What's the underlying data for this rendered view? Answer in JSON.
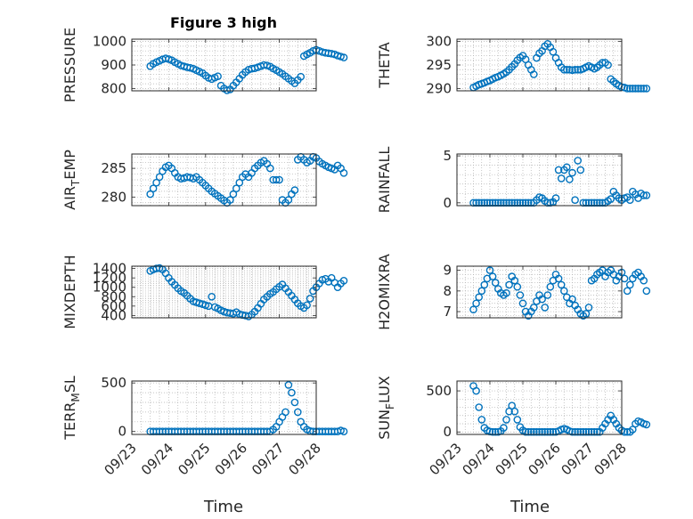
{
  "figure": {
    "title": "Figure 3 high",
    "xlabel": "Time"
  },
  "colors": {
    "marker": "#0072bd",
    "axis": "#262626",
    "grid": "#b0b0b0"
  },
  "chart_data": [
    {
      "type": "scatter",
      "ylabel": "PRESSURE",
      "xlim": [
        "09/23",
        "09/28"
      ],
      "ylim": [
        790,
        1010
      ],
      "yticks": [
        800,
        900,
        1000
      ],
      "xticks": [],
      "grid": true,
      "marker": "circle",
      "x_start": "09/23 12:00",
      "x_step_hours": 2,
      "values": [
        895,
        905,
        912,
        918,
        924,
        928,
        925,
        920,
        912,
        905,
        898,
        894,
        890,
        888,
        884,
        878,
        872,
        865,
        855,
        845,
        840,
        846,
        852,
        812,
        800,
        792,
        796,
        812,
        826,
        842,
        858,
        870,
        880,
        884,
        886,
        890,
        895,
        900,
        898,
        893,
        885,
        878,
        870,
        862,
        852,
        842,
        832,
        822,
        836,
        850,
        938,
        945,
        952,
        960,
        965,
        960,
        955,
        952,
        950,
        948,
        945,
        940,
        936,
        932
      ]
    },
    {
      "type": "scatter",
      "ylabel": "THETA",
      "xlim": [
        "09/23",
        "09/28"
      ],
      "ylim": [
        289.5,
        300.5
      ],
      "yticks": [
        290,
        295,
        300
      ],
      "xticks": [],
      "grid": true,
      "marker": "circle",
      "x_start": "09/23 12:00",
      "x_step_hours": 2,
      "values": [
        290.2,
        290.5,
        290.8,
        291,
        291.2,
        291.5,
        291.7,
        292,
        292.3,
        292.5,
        292.8,
        293.1,
        293.5,
        294,
        294.6,
        295.2,
        296,
        296.6,
        297,
        296.2,
        295,
        294,
        293,
        296.5,
        297.5,
        298,
        299,
        299.5,
        298.8,
        297.8,
        296.5,
        295.5,
        294.5,
        294,
        294,
        294,
        293.9,
        294,
        294,
        294,
        294.2,
        294.5,
        294.8,
        294.5,
        294.2,
        294.5,
        295,
        295.5,
        295.5,
        295,
        292,
        291.5,
        291,
        290.6,
        290.3,
        290.2,
        290,
        290,
        290,
        290,
        290,
        290,
        290,
        290
      ]
    },
    {
      "type": "scatter",
      "ylabel": "AIRTEMP",
      "xlim": [
        "09/23",
        "09/28"
      ],
      "ylim": [
        278.5,
        287.5
      ],
      "yticks": [
        280,
        285
      ],
      "xticks": [],
      "grid": true,
      "marker": "circle",
      "x_start": "09/23 12:00",
      "x_step_hours": 2,
      "values": [
        280.5,
        281.5,
        282.5,
        283.5,
        284.5,
        285.2,
        285.5,
        285,
        284.2,
        283.5,
        283.2,
        283.3,
        283.5,
        283.4,
        283.2,
        283.5,
        283,
        282.5,
        282,
        281.5,
        281,
        280.6,
        280.2,
        279.8,
        279.4,
        279,
        279.5,
        280.5,
        281.5,
        282.5,
        283.5,
        284,
        283.5,
        284.2,
        285,
        285.5,
        286,
        286.3,
        285.8,
        285,
        283,
        283,
        283,
        279.5,
        279,
        279.5,
        280.5,
        281.2,
        286.5,
        287,
        286.5,
        286,
        286.3,
        287,
        286.8,
        286.2,
        285.8,
        285.5,
        285.2,
        285,
        284.8,
        285.5,
        285,
        284.2
      ]
    },
    {
      "type": "scatter",
      "ylabel": "RAINFALL",
      "xlim": [
        "09/23",
        "09/28"
      ],
      "ylim": [
        -0.3,
        5.2
      ],
      "yticks": [
        0,
        5
      ],
      "xticks": [],
      "grid": true,
      "marker": "circle",
      "x_start": "09/23 12:00",
      "x_step_hours": 2,
      "values": [
        0,
        0,
        0,
        0,
        0,
        0,
        0,
        0,
        0,
        0,
        0,
        0,
        0,
        0,
        0,
        0,
        0,
        0,
        0,
        0,
        0,
        0,
        0,
        0.3,
        0.6,
        0.5,
        0.2,
        0,
        0,
        0.1,
        0.5,
        3.5,
        2.6,
        3.5,
        3.8,
        2.5,
        3.2,
        0.3,
        4.5,
        3.5,
        0,
        0,
        0,
        0,
        0,
        0,
        0,
        0,
        0,
        0.2,
        0.4,
        1.2,
        0.8,
        0.5,
        0.3,
        0.5,
        0.6,
        0.3,
        1.2,
        0.9,
        0.5,
        1,
        0.8,
        0.8
      ]
    },
    {
      "type": "scatter",
      "ylabel": "MIXDEPTH",
      "xlim": [
        "09/23",
        "09/28"
      ],
      "ylim": [
        350,
        1450
      ],
      "yticks": [
        400,
        600,
        800,
        1000,
        1200,
        1400
      ],
      "xticks": [],
      "grid": true,
      "marker": "circle",
      "x_start": "09/23 12:00",
      "x_step_hours": 2,
      "values": [
        1350,
        1380,
        1400,
        1410,
        1380,
        1300,
        1200,
        1120,
        1050,
        980,
        920,
        880,
        820,
        760,
        700,
        680,
        660,
        640,
        620,
        600,
        800,
        580,
        550,
        510,
        480,
        460,
        450,
        440,
        470,
        430,
        410,
        400,
        380,
        420,
        480,
        560,
        650,
        740,
        800,
        860,
        900,
        960,
        1010,
        1060,
        980,
        900,
        820,
        740,
        660,
        600,
        560,
        620,
        760,
        920,
        1000,
        1080,
        1160,
        1180,
        1120,
        1200,
        1100,
        1000,
        1080,
        1140
      ]
    },
    {
      "type": "scatter",
      "ylabel": "H2OMIXRA",
      "xlim": [
        "09/23",
        "09/28"
      ],
      "ylim": [
        6.7,
        9.2
      ],
      "yticks": [
        7,
        8,
        9
      ],
      "xticks": [],
      "grid": true,
      "marker": "circle",
      "x_start": "09/23 12:00",
      "x_step_hours": 2,
      "values": [
        7.1,
        7.4,
        7.7,
        8,
        8.3,
        8.6,
        9,
        8.7,
        8.4,
        8.1,
        7.9,
        7.8,
        7.9,
        8.3,
        8.7,
        8.5,
        8.2,
        7.8,
        7.4,
        7,
        6.8,
        7,
        7.2,
        7.5,
        7.8,
        7.6,
        7.2,
        7.8,
        8.2,
        8.5,
        8.8,
        8.6,
        8.3,
        8,
        7.7,
        7.4,
        7.6,
        7.3,
        7.1,
        6.9,
        6.8,
        6.9,
        7.2,
        8.5,
        8.6,
        8.8,
        8.9,
        9,
        8.7,
        8.9,
        9,
        8.8,
        8.5,
        8.7,
        8.9,
        8.6,
        8,
        8.3,
        8.6,
        8.8,
        8.9,
        8.7,
        8.5,
        8
      ]
    },
    {
      "type": "scatter",
      "ylabel": "TERRMSL",
      "xlim": [
        "09/23",
        "09/28"
      ],
      "ylim": [
        -30,
        520
      ],
      "yticks": [
        0,
        500
      ],
      "xticks": [
        "09/23",
        "09/24",
        "09/25",
        "09/26",
        "09/27",
        "09/28"
      ],
      "grid": true,
      "marker": "circle",
      "x_start": "09/23 12:00",
      "x_step_hours": 2,
      "values": [
        0,
        0,
        0,
        0,
        0,
        0,
        0,
        0,
        0,
        0,
        0,
        0,
        0,
        0,
        0,
        0,
        0,
        0,
        0,
        0,
        0,
        0,
        0,
        0,
        0,
        0,
        0,
        0,
        0,
        0,
        0,
        0,
        0,
        0,
        0,
        0,
        0,
        0,
        0,
        0,
        20,
        50,
        100,
        150,
        200,
        480,
        400,
        300,
        200,
        100,
        50,
        20,
        5,
        0,
        0,
        0,
        0,
        0,
        0,
        0,
        0,
        0,
        10,
        0
      ]
    },
    {
      "type": "scatter",
      "ylabel": "SUNFLUX",
      "xlim": [
        "09/23",
        "09/28"
      ],
      "ylim": [
        -30,
        620
      ],
      "yticks": [
        0,
        500
      ],
      "xticks": [
        "09/23",
        "09/24",
        "09/25",
        "09/26",
        "09/27",
        "09/28"
      ],
      "grid": true,
      "marker": "circle",
      "x_start": "09/23 12:00",
      "x_step_hours": 2,
      "values": [
        560,
        500,
        300,
        150,
        50,
        20,
        5,
        0,
        0,
        0,
        10,
        50,
        150,
        250,
        320,
        250,
        150,
        60,
        20,
        0,
        0,
        0,
        0,
        0,
        0,
        0,
        0,
        0,
        0,
        0,
        0,
        10,
        30,
        40,
        30,
        10,
        0,
        0,
        0,
        0,
        0,
        0,
        0,
        0,
        0,
        0,
        0,
        50,
        100,
        150,
        200,
        150,
        100,
        50,
        20,
        0,
        0,
        0,
        30,
        100,
        130,
        120,
        100,
        90
      ]
    }
  ]
}
